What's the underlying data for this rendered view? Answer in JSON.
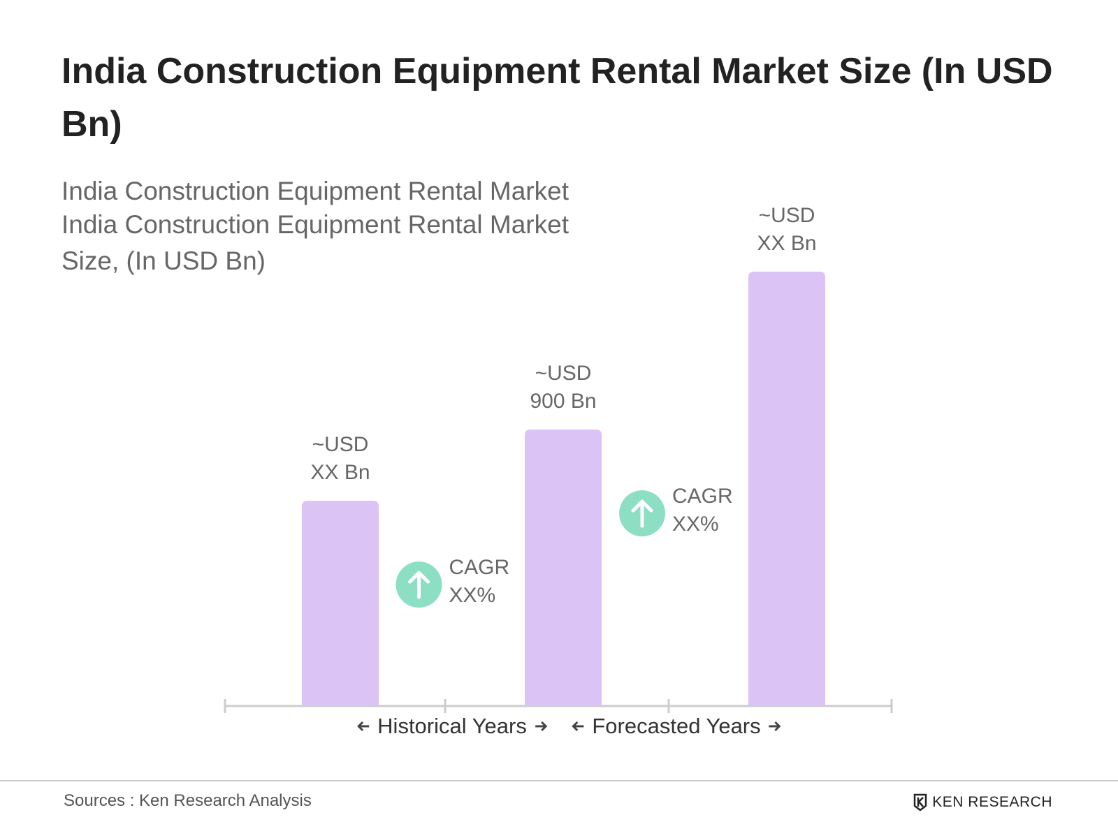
{
  "chart_data": {
    "type": "bar",
    "title": "India Construction Equipment Rental Market Size (In USD Bn)",
    "subtitle": [
      "India Construction Equipment Rental Market",
      "India Construction Equipment Rental Market Size, (In USD Bn)"
    ],
    "categories": [
      null,
      null,
      null
    ],
    "values": [
      668,
      900,
      1414
    ],
    "value_labels": [
      "~USD XX Bn",
      "~USD 900 Bn",
      "~USD XX Bn"
    ],
    "color": "#dcc3f5",
    "annotations": [
      "CAGR XX%",
      "CAGR XX%"
    ],
    "annotation_color": "#8ddfc4",
    "x_groups": [
      "Historical Years",
      "Forecasted Years"
    ]
  },
  "footer": {
    "source": "Sources : Ken Research Analysis",
    "logo": "KEN RESEARCH"
  }
}
